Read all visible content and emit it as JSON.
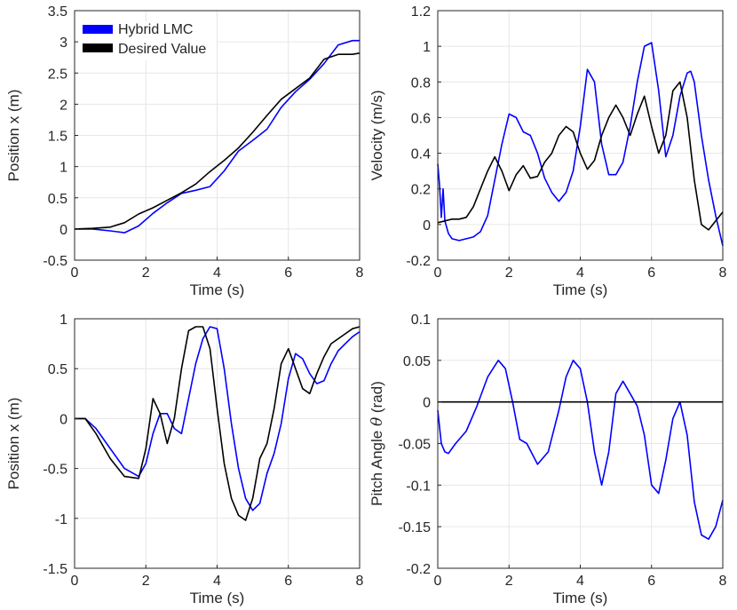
{
  "chart_data": [
    {
      "type": "line",
      "id": "top-left",
      "xlabel": "Time (s)",
      "ylabel": "Position x (m)",
      "xlim": [
        0,
        8
      ],
      "ylim": [
        -0.5,
        3.5
      ],
      "xticks": [
        0,
        2,
        4,
        6,
        8
      ],
      "yticks": [
        -0.5,
        0,
        0.5,
        1,
        1.5,
        2,
        2.5,
        3,
        3.5
      ],
      "xtick_labels": [
        "0",
        "2",
        "4",
        "6",
        "8"
      ],
      "ytick_labels": [
        "-0.5",
        "0",
        "0.5",
        "1",
        "1.5",
        "2",
        "2.5",
        "3",
        "3.5"
      ],
      "grid": true,
      "legend": {
        "position": "top-left",
        "entries": [
          "Hybrid LMC",
          "Desired Value"
        ]
      },
      "series": [
        {
          "name": "Hybrid LMC",
          "color": "#0000ff",
          "x": [
            0,
            0.5,
            1.0,
            1.4,
            1.8,
            2.2,
            2.6,
            3.0,
            3.4,
            3.8,
            4.2,
            4.6,
            5.0,
            5.4,
            5.8,
            6.2,
            6.6,
            7.0,
            7.4,
            7.8,
            8.0
          ],
          "y": [
            0,
            0,
            -0.03,
            -0.06,
            0.05,
            0.25,
            0.42,
            0.57,
            0.62,
            0.68,
            0.93,
            1.25,
            1.42,
            1.6,
            1.95,
            2.2,
            2.4,
            2.65,
            2.95,
            3.02,
            3.02
          ]
        },
        {
          "name": "Desired Value",
          "color": "#000000",
          "x": [
            0,
            0.5,
            1.0,
            1.4,
            1.8,
            2.2,
            2.6,
            3.0,
            3.4,
            3.8,
            4.2,
            4.6,
            5.0,
            5.4,
            5.8,
            6.2,
            6.6,
            7.0,
            7.4,
            7.8,
            8.0
          ],
          "y": [
            0,
            0.01,
            0.03,
            0.1,
            0.24,
            0.34,
            0.46,
            0.58,
            0.72,
            0.92,
            1.1,
            1.3,
            1.55,
            1.82,
            2.08,
            2.25,
            2.42,
            2.72,
            2.8,
            2.8,
            2.82
          ]
        }
      ]
    },
    {
      "type": "line",
      "id": "top-right",
      "xlabel": "Time (s)",
      "ylabel": "Velocity (m/s)",
      "xlim": [
        0,
        8
      ],
      "ylim": [
        -0.2,
        1.2
      ],
      "xticks": [
        0,
        2,
        4,
        6,
        8
      ],
      "yticks": [
        -0.2,
        0,
        0.2,
        0.4,
        0.6,
        0.8,
        1,
        1.2
      ],
      "xtick_labels": [
        "0",
        "2",
        "4",
        "6",
        "8"
      ],
      "ytick_labels": [
        "-0.2",
        "0",
        "0.2",
        "0.4",
        "0.6",
        "0.8",
        "1",
        "1.2"
      ],
      "grid": true,
      "series": [
        {
          "name": "Hybrid LMC",
          "color": "#0000ff",
          "x": [
            0,
            0.05,
            0.1,
            0.15,
            0.2,
            0.3,
            0.4,
            0.6,
            0.8,
            1.0,
            1.2,
            1.4,
            1.6,
            1.8,
            2.0,
            2.2,
            2.4,
            2.6,
            2.8,
            3.0,
            3.2,
            3.4,
            3.6,
            3.8,
            4.0,
            4.2,
            4.4,
            4.6,
            4.8,
            5.0,
            5.2,
            5.4,
            5.6,
            5.8,
            6.0,
            6.2,
            6.4,
            6.6,
            6.8,
            7.0,
            7.1,
            7.2,
            7.4,
            7.6,
            7.8,
            8.0
          ],
          "y": [
            0.34,
            0.22,
            0.04,
            0.2,
            0.02,
            -0.05,
            -0.08,
            -0.09,
            -0.08,
            -0.07,
            -0.04,
            0.05,
            0.25,
            0.45,
            0.62,
            0.6,
            0.52,
            0.5,
            0.4,
            0.26,
            0.18,
            0.13,
            0.18,
            0.3,
            0.55,
            0.87,
            0.8,
            0.45,
            0.28,
            0.28,
            0.35,
            0.55,
            0.8,
            1.0,
            1.02,
            0.75,
            0.38,
            0.5,
            0.72,
            0.85,
            0.86,
            0.8,
            0.5,
            0.25,
            0.05,
            -0.12
          ]
        },
        {
          "name": "Desired Value",
          "color": "#000000",
          "x": [
            0,
            0.2,
            0.4,
            0.6,
            0.8,
            1.0,
            1.2,
            1.4,
            1.6,
            1.8,
            2.0,
            2.2,
            2.4,
            2.6,
            2.8,
            3.0,
            3.2,
            3.4,
            3.6,
            3.8,
            4.0,
            4.2,
            4.4,
            4.6,
            4.8,
            5.0,
            5.2,
            5.4,
            5.6,
            5.8,
            6.0,
            6.2,
            6.4,
            6.6,
            6.8,
            7.0,
            7.2,
            7.4,
            7.6,
            7.8,
            8.0
          ],
          "y": [
            0.01,
            0.02,
            0.03,
            0.03,
            0.04,
            0.1,
            0.2,
            0.3,
            0.38,
            0.3,
            0.19,
            0.28,
            0.33,
            0.26,
            0.27,
            0.35,
            0.4,
            0.5,
            0.55,
            0.52,
            0.4,
            0.31,
            0.36,
            0.5,
            0.6,
            0.67,
            0.6,
            0.5,
            0.62,
            0.72,
            0.55,
            0.4,
            0.5,
            0.75,
            0.8,
            0.6,
            0.25,
            0.0,
            -0.03,
            0.02,
            0.07
          ]
        }
      ]
    },
    {
      "type": "line",
      "id": "bottom-left",
      "xlabel": "Time (s)",
      "ylabel": "Position x (m)",
      "xlim": [
        0,
        8
      ],
      "ylim": [
        -1.5,
        1
      ],
      "xticks": [
        0,
        2,
        4,
        6,
        8
      ],
      "yticks": [
        -1.5,
        -1,
        -0.5,
        0,
        0.5,
        1
      ],
      "xtick_labels": [
        "0",
        "2",
        "4",
        "6",
        "8"
      ],
      "ytick_labels": [
        "-1.5",
        "-1",
        "-0.5",
        "0",
        "0.5",
        "1"
      ],
      "grid": true,
      "series": [
        {
          "name": "Hybrid LMC",
          "color": "#0000ff",
          "x": [
            0,
            0.3,
            0.6,
            1.0,
            1.4,
            1.8,
            2.0,
            2.2,
            2.4,
            2.6,
            2.8,
            3.0,
            3.2,
            3.4,
            3.6,
            3.8,
            4.0,
            4.2,
            4.4,
            4.6,
            4.8,
            5.0,
            5.2,
            5.4,
            5.6,
            5.8,
            6.0,
            6.2,
            6.4,
            6.6,
            6.8,
            7.0,
            7.2,
            7.4,
            7.6,
            7.8,
            8.0
          ],
          "y": [
            0,
            0,
            -0.1,
            -0.3,
            -0.5,
            -0.58,
            -0.45,
            -0.15,
            0.05,
            0.05,
            -0.1,
            -0.15,
            0.2,
            0.55,
            0.8,
            0.92,
            0.9,
            0.5,
            -0.05,
            -0.5,
            -0.8,
            -0.92,
            -0.85,
            -0.55,
            -0.35,
            -0.05,
            0.4,
            0.65,
            0.6,
            0.45,
            0.35,
            0.38,
            0.55,
            0.68,
            0.75,
            0.82,
            0.87
          ]
        },
        {
          "name": "Desired Value",
          "color": "#000000",
          "x": [
            0,
            0.3,
            0.6,
            1.0,
            1.4,
            1.8,
            2.0,
            2.2,
            2.4,
            2.6,
            2.8,
            3.0,
            3.2,
            3.4,
            3.6,
            3.8,
            4.0,
            4.2,
            4.4,
            4.6,
            4.8,
            5.0,
            5.2,
            5.4,
            5.6,
            5.8,
            6.0,
            6.2,
            6.4,
            6.6,
            6.8,
            7.0,
            7.2,
            7.4,
            7.6,
            7.8,
            8.0
          ],
          "y": [
            0,
            0,
            -0.15,
            -0.4,
            -0.58,
            -0.6,
            -0.3,
            0.2,
            0.05,
            -0.25,
            0.0,
            0.5,
            0.88,
            0.92,
            0.92,
            0.7,
            0.1,
            -0.45,
            -0.8,
            -0.97,
            -1.02,
            -0.8,
            -0.4,
            -0.25,
            0.1,
            0.55,
            0.7,
            0.5,
            0.3,
            0.25,
            0.45,
            0.62,
            0.75,
            0.8,
            0.85,
            0.9,
            0.92
          ]
        }
      ]
    },
    {
      "type": "line",
      "id": "bottom-right",
      "xlabel": "Time (s)",
      "ylabel": "Pitch Angle θ (rad)",
      "ylabel_prefix": "Pitch Angle ",
      "ylabel_symbol": "θ",
      "ylabel_suffix": " (rad)",
      "xlim": [
        0,
        8
      ],
      "ylim": [
        -0.2,
        0.1
      ],
      "xticks": [
        0,
        2,
        4,
        6,
        8
      ],
      "yticks": [
        -0.2,
        -0.15,
        -0.1,
        -0.05,
        0,
        0.05,
        0.1
      ],
      "xtick_labels": [
        "0",
        "2",
        "4",
        "6",
        "8"
      ],
      "ytick_labels": [
        "-0.2",
        "-0.15",
        "-0.1",
        "-0.05",
        "0",
        "0.05",
        "0.1"
      ],
      "grid": true,
      "series": [
        {
          "name": "Hybrid LMC",
          "color": "#0000ff",
          "x": [
            0,
            0.1,
            0.2,
            0.3,
            0.5,
            0.8,
            1.1,
            1.4,
            1.7,
            1.9,
            2.1,
            2.3,
            2.5,
            2.8,
            3.1,
            3.4,
            3.6,
            3.8,
            4.0,
            4.2,
            4.4,
            4.6,
            4.8,
            5.0,
            5.2,
            5.4,
            5.6,
            5.8,
            6.0,
            6.2,
            6.4,
            6.6,
            6.8,
            7.0,
            7.2,
            7.4,
            7.6,
            7.8,
            8.0
          ],
          "y": [
            -0.01,
            -0.05,
            -0.06,
            -0.062,
            -0.05,
            -0.035,
            -0.005,
            0.03,
            0.05,
            0.04,
            0.0,
            -0.045,
            -0.05,
            -0.075,
            -0.06,
            -0.01,
            0.03,
            0.05,
            0.04,
            0.0,
            -0.06,
            -0.1,
            -0.06,
            0.01,
            0.025,
            0.01,
            -0.005,
            -0.04,
            -0.1,
            -0.11,
            -0.07,
            -0.02,
            0.0,
            -0.04,
            -0.12,
            -0.16,
            -0.165,
            -0.15,
            -0.118
          ]
        },
        {
          "name": "Desired Value",
          "color": "#000000",
          "x": [
            0,
            8
          ],
          "y": [
            0,
            0
          ]
        }
      ]
    }
  ]
}
